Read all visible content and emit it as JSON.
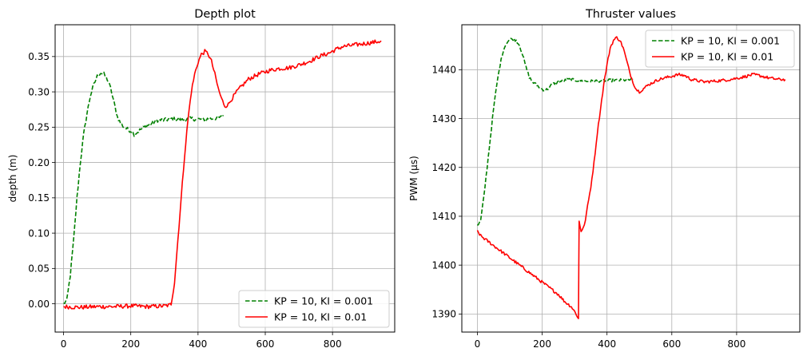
{
  "chart_data": [
    {
      "type": "line",
      "title": "Depth plot",
      "xlabel": "",
      "ylabel": "depth (m)",
      "xlim": [
        -25,
        985
      ],
      "ylim": [
        -0.04,
        0.395
      ],
      "xticks": [
        0,
        200,
        400,
        600,
        800
      ],
      "yticks": [
        0.0,
        0.05,
        0.1,
        0.15,
        0.2,
        0.25,
        0.3,
        0.35
      ],
      "ytick_decimals": 2,
      "grid": true,
      "legend_position": "lower right",
      "noise": 0.003,
      "series": [
        {
          "name": "KP = 10, KI = 0.001",
          "color": "#008000",
          "style": "dashed",
          "points": [
            [
              0,
              0.0
            ],
            [
              10,
              0.005
            ],
            [
              20,
              0.04
            ],
            [
              30,
              0.09
            ],
            [
              40,
              0.15
            ],
            [
              50,
              0.2
            ],
            [
              60,
              0.24
            ],
            [
              70,
              0.27
            ],
            [
              80,
              0.295
            ],
            [
              90,
              0.31
            ],
            [
              100,
              0.322
            ],
            [
              110,
              0.327
            ],
            [
              120,
              0.325
            ],
            [
              130,
              0.318
            ],
            [
              140,
              0.305
            ],
            [
              150,
              0.285
            ],
            [
              160,
              0.265
            ],
            [
              170,
              0.255
            ],
            [
              180,
              0.25
            ],
            [
              190,
              0.247
            ],
            [
              200,
              0.245
            ],
            [
              210,
              0.24
            ],
            [
              220,
              0.243
            ],
            [
              230,
              0.247
            ],
            [
              240,
              0.25
            ],
            [
              260,
              0.255
            ],
            [
              280,
              0.26
            ],
            [
              300,
              0.26
            ],
            [
              320,
              0.262
            ],
            [
              350,
              0.26
            ],
            [
              380,
              0.262
            ],
            [
              410,
              0.261
            ],
            [
              440,
              0.262
            ],
            [
              470,
              0.264
            ],
            [
              475,
              0.267
            ]
          ]
        },
        {
          "name": "KP = 10, KI = 0.01",
          "color": "#ff0000",
          "style": "solid",
          "points": [
            [
              0,
              -0.004
            ],
            [
              50,
              -0.005
            ],
            [
              100,
              -0.004
            ],
            [
              150,
              -0.004
            ],
            [
              200,
              -0.003
            ],
            [
              250,
              -0.004
            ],
            [
              300,
              -0.003
            ],
            [
              315,
              -0.002
            ],
            [
              320,
              0.0
            ],
            [
              330,
              0.03
            ],
            [
              340,
              0.09
            ],
            [
              350,
              0.15
            ],
            [
              360,
              0.21
            ],
            [
              370,
              0.26
            ],
            [
              380,
              0.3
            ],
            [
              390,
              0.325
            ],
            [
              400,
              0.342
            ],
            [
              410,
              0.353
            ],
            [
              420,
              0.357
            ],
            [
              430,
              0.354
            ],
            [
              440,
              0.343
            ],
            [
              450,
              0.325
            ],
            [
              460,
              0.305
            ],
            [
              470,
              0.29
            ],
            [
              480,
              0.28
            ],
            [
              490,
              0.282
            ],
            [
              500,
              0.29
            ],
            [
              520,
              0.303
            ],
            [
              550,
              0.318
            ],
            [
              580,
              0.325
            ],
            [
              610,
              0.33
            ],
            [
              640,
              0.333
            ],
            [
              670,
              0.334
            ],
            [
              700,
              0.338
            ],
            [
              730,
              0.343
            ],
            [
              760,
              0.35
            ],
            [
              790,
              0.355
            ],
            [
              810,
              0.36
            ],
            [
              830,
              0.364
            ],
            [
              860,
              0.366
            ],
            [
              890,
              0.368
            ],
            [
              920,
              0.37
            ],
            [
              945,
              0.372
            ]
          ]
        }
      ]
    },
    {
      "type": "line",
      "title": "Thruster values",
      "xlabel": "",
      "ylabel": "PWM (µs)",
      "xlim": [
        -48,
        995
      ],
      "ylim": [
        1386.3,
        1449.2
      ],
      "xticks": [
        0,
        200,
        400,
        600,
        800
      ],
      "yticks": [
        1390,
        1400,
        1410,
        1420,
        1430,
        1440
      ],
      "ytick_decimals": 0,
      "grid": true,
      "legend_position": "upper right",
      "noise": 0.3,
      "series": [
        {
          "name": "KP = 10, KI = 0.001",
          "color": "#008000",
          "style": "dashed",
          "points": [
            [
              0,
              1408
            ],
            [
              10,
              1409
            ],
            [
              20,
              1414
            ],
            [
              30,
              1420
            ],
            [
              40,
              1426
            ],
            [
              50,
              1432
            ],
            [
              60,
              1437
            ],
            [
              70,
              1441
            ],
            [
              80,
              1444
            ],
            [
              90,
              1445.5
            ],
            [
              100,
              1446.2
            ],
            [
              110,
              1446.3
            ],
            [
              120,
              1446
            ],
            [
              130,
              1445
            ],
            [
              140,
              1443
            ],
            [
              150,
              1440.5
            ],
            [
              160,
              1438.5
            ],
            [
              170,
              1437.5
            ],
            [
              180,
              1437
            ],
            [
              190,
              1436.5
            ],
            [
              200,
              1436
            ],
            [
              210,
              1435.8
            ],
            [
              220,
              1436.2
            ],
            [
              230,
              1437
            ],
            [
              250,
              1437.5
            ],
            [
              280,
              1438
            ],
            [
              310,
              1437.8
            ],
            [
              340,
              1437.6
            ],
            [
              370,
              1437.7
            ],
            [
              400,
              1437.8
            ],
            [
              430,
              1437.8
            ],
            [
              460,
              1437.9
            ],
            [
              480,
              1438
            ]
          ]
        },
        {
          "name": "KP = 10, KI = 0.01",
          "color": "#ff0000",
          "style": "solid",
          "points": [
            [
              0,
              1407
            ],
            [
              10,
              1406
            ],
            [
              30,
              1405
            ],
            [
              50,
              1404
            ],
            [
              70,
              1403
            ],
            [
              90,
              1402
            ],
            [
              110,
              1401
            ],
            [
              130,
              1400
            ],
            [
              150,
              1399
            ],
            [
              170,
              1398
            ],
            [
              190,
              1397
            ],
            [
              210,
              1396
            ],
            [
              230,
              1395
            ],
            [
              250,
              1394
            ],
            [
              270,
              1392.5
            ],
            [
              290,
              1391.5
            ],
            [
              305,
              1390
            ],
            [
              312,
              1389
            ],
            [
              313,
              1400
            ],
            [
              314,
              1409
            ],
            [
              320,
              1407
            ],
            [
              330,
              1408
            ],
            [
              340,
              1412
            ],
            [
              350,
              1416
            ],
            [
              360,
              1421
            ],
            [
              370,
              1427
            ],
            [
              380,
              1432
            ],
            [
              390,
              1437
            ],
            [
              400,
              1441
            ],
            [
              410,
              1444.5
            ],
            [
              420,
              1446
            ],
            [
              430,
              1446.6
            ],
            [
              440,
              1446
            ],
            [
              450,
              1444.5
            ],
            [
              460,
              1442
            ],
            [
              470,
              1439.5
            ],
            [
              480,
              1437.5
            ],
            [
              490,
              1436
            ],
            [
              500,
              1435.5
            ],
            [
              510,
              1436
            ],
            [
              530,
              1437
            ],
            [
              560,
              1438
            ],
            [
              590,
              1438.5
            ],
            [
              620,
              1439
            ],
            [
              640,
              1438.8
            ],
            [
              660,
              1438
            ],
            [
              700,
              1437.5
            ],
            [
              740,
              1437.7
            ],
            [
              780,
              1438
            ],
            [
              820,
              1438.5
            ],
            [
              850,
              1439
            ],
            [
              870,
              1438.8
            ],
            [
              900,
              1438.3
            ],
            [
              930,
              1438
            ],
            [
              950,
              1438
            ]
          ]
        }
      ]
    }
  ]
}
